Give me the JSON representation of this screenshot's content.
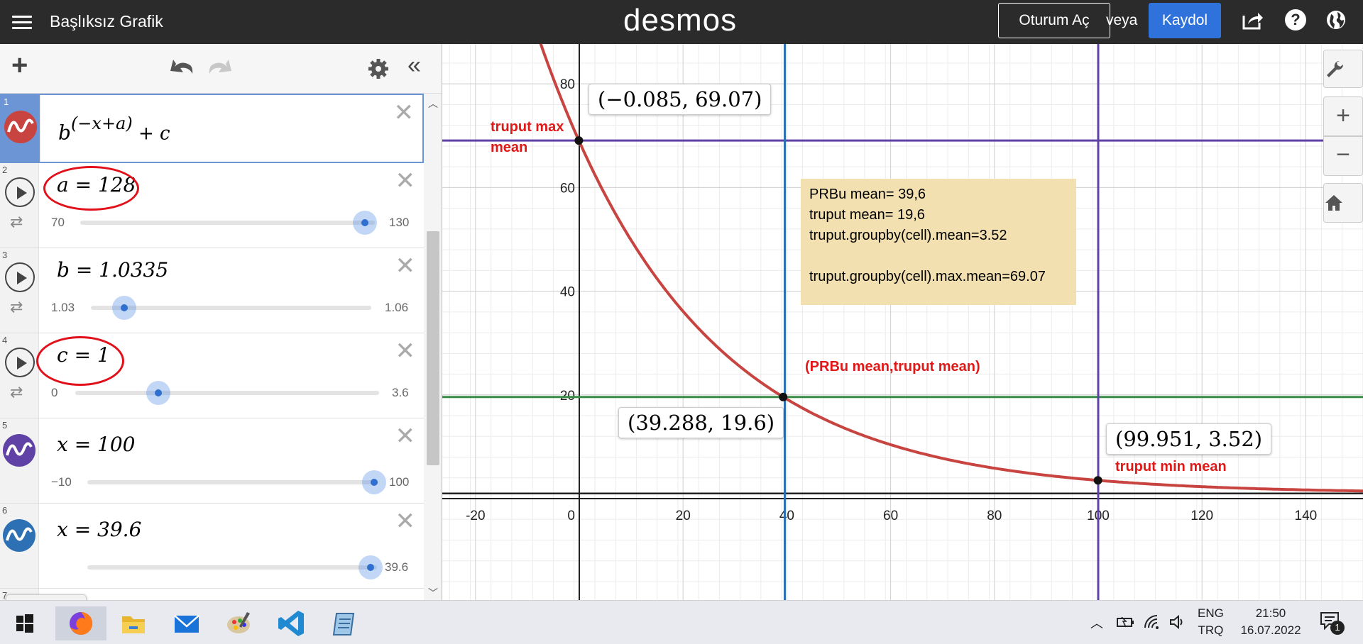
{
  "topbar": {
    "title": "Başlıksız Grafik",
    "logo": "desmos",
    "login_label": "Oturum Aç",
    "or_label": "veya",
    "signup_label": "Kaydol"
  },
  "expressions": [
    {
      "num": "1",
      "formula_base": "b",
      "formula_exp": "(−x+a)",
      "formula_tail": " + c"
    },
    {
      "num": "2",
      "formula": "a = 128",
      "min": "70",
      "max": "130",
      "value": 128
    },
    {
      "num": "3",
      "formula": "b = 1.0335",
      "min": "1.03",
      "max": "1.06",
      "value": 1.0335
    },
    {
      "num": "4",
      "formula": "c = 1",
      "min": "0",
      "max": "3.6",
      "value": 1
    },
    {
      "num": "5",
      "formula": "x = 100",
      "min": "−10",
      "max": "100",
      "value": 100
    },
    {
      "num": "6",
      "formula": "x = 39.6",
      "min": "",
      "max": "39.6",
      "value": 39.6
    },
    {
      "num": "7"
    }
  ],
  "graph": {
    "x_ticks": [
      "-20",
      "0",
      "20",
      "40",
      "60",
      "80",
      "100",
      "120",
      "140"
    ],
    "y_ticks": [
      "20",
      "40",
      "60",
      "80"
    ],
    "points": [
      {
        "label": "(−0.085, 69.07)"
      },
      {
        "label": "(39.288, 19.6)"
      },
      {
        "label": "(99.951, 3.52)"
      }
    ],
    "note_lines": [
      "PRBu mean= 39,6",
      "truput mean= 19,6",
      "truput.groupby(cell).mean=3.52",
      "",
      "truput.groupby(cell).max.mean=69.07"
    ],
    "annotation_max_line1": "truput max",
    "annotation_max_line2": "mean",
    "annotation_center": "(PRBu mean,truput mean)",
    "annotation_min": "truput min mean",
    "colors": {
      "curve": "#c74440",
      "horizontal_purple": "#6042a6",
      "vertical_blue": "#2d70b3",
      "horizontal_green": "#388c46",
      "vertical_purple": "#6042a6"
    }
  },
  "taskbar": {
    "lang_line1": "ENG",
    "lang_line2": "TRQ",
    "time": "21:50",
    "date": "16.07.2022",
    "notif_count": "1"
  }
}
